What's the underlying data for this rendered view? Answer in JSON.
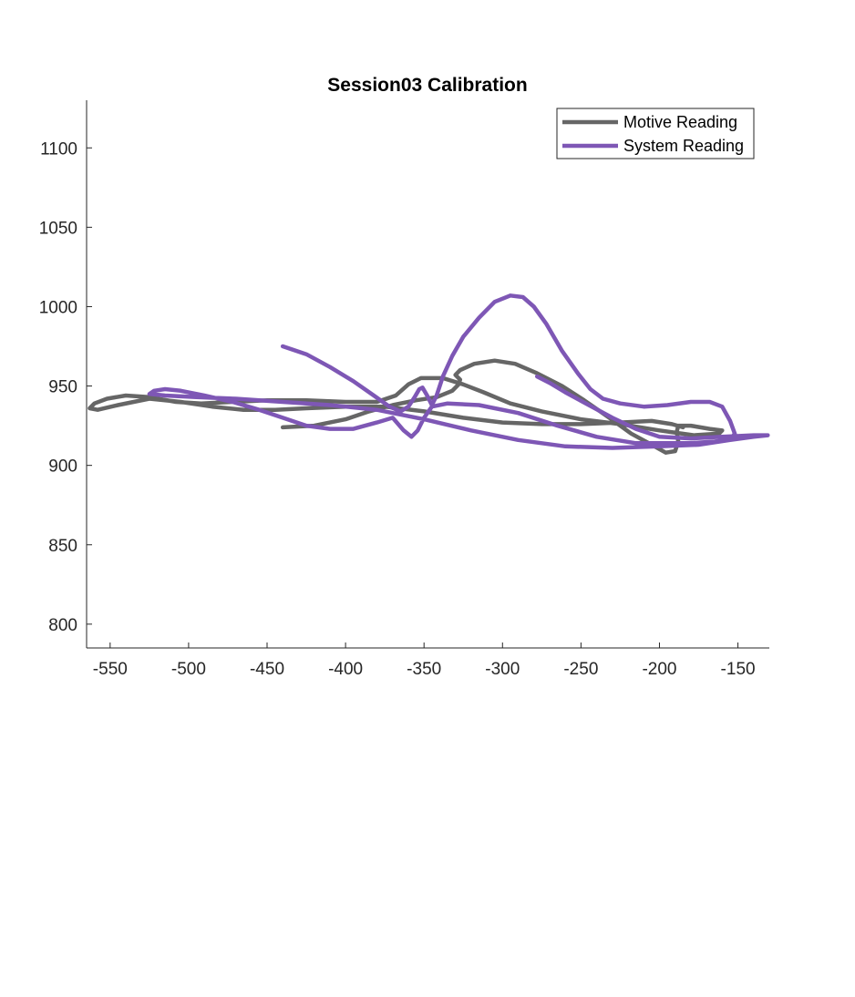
{
  "chart_data": {
    "type": "line",
    "title": "Session03 Calibration",
    "xlabel": "",
    "ylabel": "",
    "xlim": [
      -565,
      -130
    ],
    "ylim": [
      785,
      1130
    ],
    "xticks": [
      -550,
      -500,
      -450,
      -400,
      -350,
      -300,
      -250,
      -200,
      -150
    ],
    "yticks": [
      800,
      850,
      900,
      950,
      1000,
      1050,
      1100
    ],
    "grid": false,
    "legend_position": "top-right",
    "series": [
      {
        "name": "Motive Reading",
        "color": "#666666",
        "points": [
          [
            -440,
            924
          ],
          [
            -420,
            925
          ],
          [
            -400,
            929
          ],
          [
            -385,
            934
          ],
          [
            -370,
            938
          ],
          [
            -355,
            941
          ],
          [
            -342,
            943
          ],
          [
            -332,
            947
          ],
          [
            -328,
            951
          ],
          [
            -327,
            954
          ],
          [
            -330,
            957
          ],
          [
            -327,
            960
          ],
          [
            -318,
            964
          ],
          [
            -305,
            966
          ],
          [
            -292,
            964
          ],
          [
            -278,
            958
          ],
          [
            -262,
            950
          ],
          [
            -248,
            941
          ],
          [
            -232,
            930
          ],
          [
            -218,
            920
          ],
          [
            -205,
            913
          ],
          [
            -196,
            908
          ],
          [
            -190,
            909
          ],
          [
            -188,
            915
          ],
          [
            -189,
            921
          ],
          [
            -188,
            925
          ],
          [
            -180,
            925
          ],
          [
            -168,
            923
          ],
          [
            -160,
            922
          ],
          [
            -162,
            920
          ],
          [
            -178,
            919
          ],
          [
            -200,
            922
          ],
          [
            -225,
            926
          ],
          [
            -250,
            929
          ],
          [
            -275,
            934
          ],
          [
            -295,
            939
          ],
          [
            -312,
            946
          ],
          [
            -325,
            951
          ],
          [
            -338,
            955
          ],
          [
            -352,
            955
          ],
          [
            -360,
            951
          ],
          [
            -368,
            944
          ],
          [
            -380,
            940
          ],
          [
            -400,
            940
          ],
          [
            -425,
            941
          ],
          [
            -450,
            941
          ],
          [
            -472,
            940
          ],
          [
            -492,
            939
          ],
          [
            -508,
            940
          ],
          [
            -525,
            943
          ],
          [
            -540,
            944
          ],
          [
            -552,
            942
          ],
          [
            -560,
            939
          ],
          [
            -563,
            936
          ],
          [
            -558,
            935
          ],
          [
            -545,
            938
          ],
          [
            -525,
            942
          ],
          [
            -505,
            940
          ],
          [
            -485,
            937
          ],
          [
            -465,
            935
          ],
          [
            -445,
            935
          ],
          [
            -425,
            936
          ],
          [
            -400,
            937
          ],
          [
            -375,
            937
          ],
          [
            -350,
            934
          ],
          [
            -325,
            930
          ],
          [
            -300,
            927
          ],
          [
            -275,
            926
          ],
          [
            -250,
            926
          ],
          [
            -225,
            927
          ],
          [
            -205,
            928
          ],
          [
            -192,
            926
          ],
          [
            -185,
            924
          ]
        ]
      },
      {
        "name": "System Reading",
        "color": "#7e57b5",
        "points": [
          [
            -440,
            975
          ],
          [
            -425,
            970
          ],
          [
            -410,
            962
          ],
          [
            -395,
            953
          ],
          [
            -382,
            944
          ],
          [
            -372,
            937
          ],
          [
            -365,
            934
          ],
          [
            -360,
            937
          ],
          [
            -356,
            943
          ],
          [
            -353,
            948
          ],
          [
            -351,
            949
          ],
          [
            -348,
            944
          ],
          [
            -345,
            938
          ],
          [
            -342,
            944
          ],
          [
            -338,
            956
          ],
          [
            -332,
            969
          ],
          [
            -325,
            981
          ],
          [
            -315,
            993
          ],
          [
            -305,
            1003
          ],
          [
            -295,
            1007
          ],
          [
            -287,
            1006
          ],
          [
            -280,
            1000
          ],
          [
            -272,
            989
          ],
          [
            -262,
            972
          ],
          [
            -252,
            958
          ],
          [
            -244,
            948
          ],
          [
            -236,
            942
          ],
          [
            -225,
            939
          ],
          [
            -210,
            937
          ],
          [
            -195,
            938
          ],
          [
            -180,
            940
          ],
          [
            -168,
            940
          ],
          [
            -160,
            937
          ],
          [
            -155,
            928
          ],
          [
            -152,
            920
          ],
          [
            -155,
            916
          ],
          [
            -165,
            915
          ],
          [
            -180,
            914
          ],
          [
            -195,
            914
          ],
          [
            -215,
            914
          ],
          [
            -240,
            918
          ],
          [
            -265,
            925
          ],
          [
            -290,
            933
          ],
          [
            -315,
            938
          ],
          [
            -335,
            939
          ],
          [
            -345,
            937
          ],
          [
            -350,
            930
          ],
          [
            -354,
            922
          ],
          [
            -358,
            918
          ],
          [
            -363,
            922
          ],
          [
            -370,
            930
          ],
          [
            -380,
            927
          ],
          [
            -395,
            923
          ],
          [
            -410,
            923
          ],
          [
            -425,
            925
          ],
          [
            -440,
            930
          ],
          [
            -455,
            935
          ],
          [
            -472,
            940
          ],
          [
            -490,
            944
          ],
          [
            -505,
            947
          ],
          [
            -515,
            948
          ],
          [
            -522,
            947
          ],
          [
            -525,
            945
          ],
          [
            -515,
            944
          ],
          [
            -495,
            943
          ],
          [
            -470,
            942
          ],
          [
            -440,
            940
          ],
          [
            -410,
            938
          ],
          [
            -380,
            935
          ],
          [
            -350,
            929
          ],
          [
            -320,
            922
          ],
          [
            -290,
            916
          ],
          [
            -260,
            912
          ],
          [
            -230,
            911
          ],
          [
            -200,
            912
          ],
          [
            -175,
            913
          ],
          [
            -155,
            916
          ],
          [
            -140,
            918
          ],
          [
            -131,
            919
          ],
          [
            -140,
            919
          ],
          [
            -160,
            918
          ],
          [
            -180,
            917
          ],
          [
            -200,
            918
          ],
          [
            -215,
            923
          ],
          [
            -230,
            930
          ],
          [
            -245,
            938
          ],
          [
            -260,
            946
          ],
          [
            -270,
            952
          ],
          [
            -278,
            956
          ]
        ]
      }
    ]
  }
}
